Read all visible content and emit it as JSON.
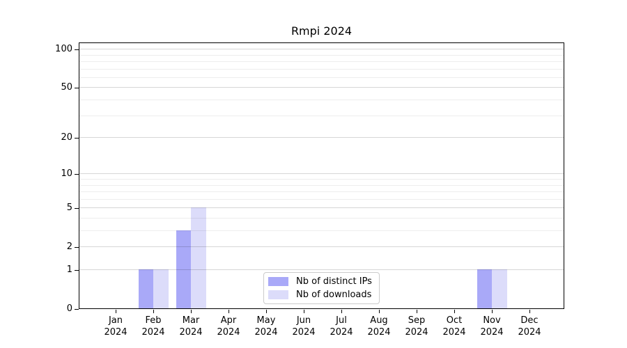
{
  "chart_data": {
    "type": "bar",
    "title": "Rmpi 2024",
    "categories": [
      "Jan",
      "Feb",
      "Mar",
      "Apr",
      "May",
      "Jun",
      "Jul",
      "Aug",
      "Sep",
      "Oct",
      "Nov",
      "Dec"
    ],
    "category_year": "2024",
    "series": [
      {
        "name": "Nb of distinct IPs",
        "color": "#a9a9f8",
        "values": [
          0,
          1,
          3,
          0,
          0,
          0,
          0,
          0,
          0,
          0,
          1,
          0
        ]
      },
      {
        "name": "Nb of downloads",
        "color": "#dcdcfa",
        "values": [
          0,
          1,
          5,
          0,
          0,
          0,
          0,
          0,
          0,
          0,
          1,
          0
        ]
      }
    ],
    "y_axis": {
      "scale": "log1p",
      "major_ticks": [
        0,
        1,
        2,
        5,
        10,
        20,
        50,
        100
      ],
      "minor_gridlines": [
        3,
        4,
        6,
        7,
        8,
        9,
        30,
        40,
        60,
        70,
        80,
        90
      ],
      "ylim": [
        0,
        113
      ]
    },
    "xlabel": "",
    "ylabel": "",
    "grid": true,
    "legend_position": "lower center",
    "colors": {
      "axis": "#000000",
      "background": "#ffffff",
      "major_grid": "#d6d6d6",
      "minor_grid": "#ededed",
      "legend_border": "#cbcbcb"
    }
  }
}
